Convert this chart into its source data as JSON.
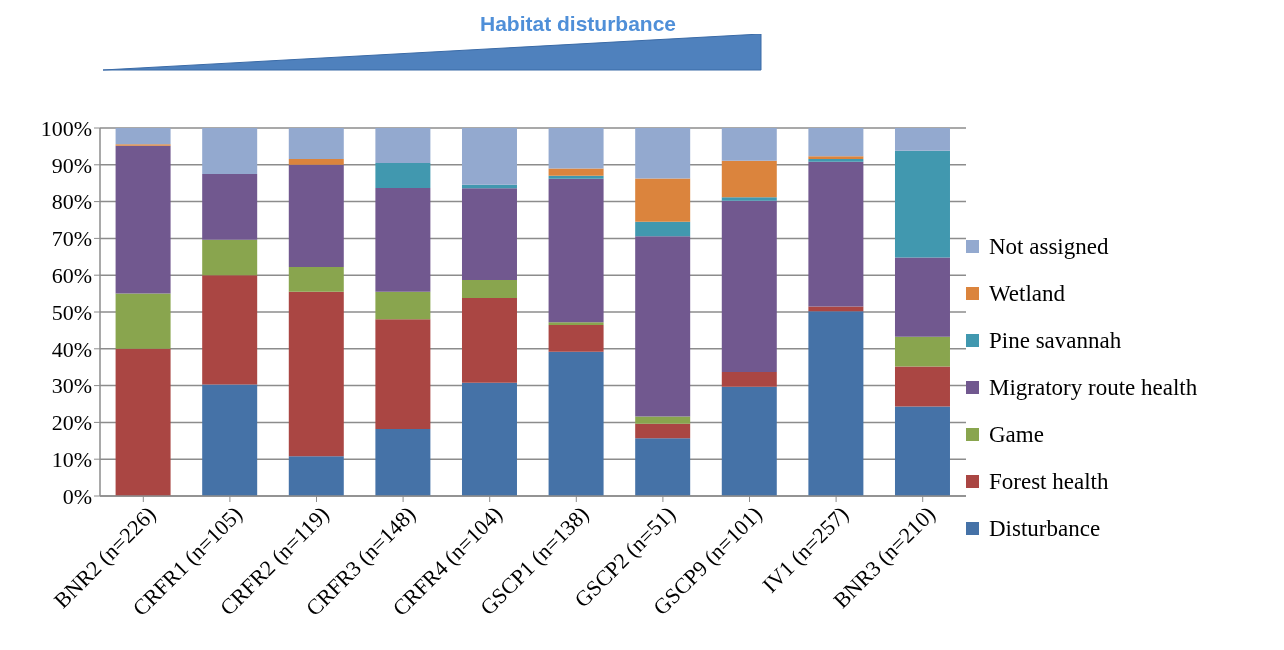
{
  "chart_data": {
    "type": "bar",
    "stacked": true,
    "title": "Habitat disturbance",
    "categories": [
      "BNR2 (n=226)",
      "CRFR1 (n=105)",
      "CRFR2 (n=119)",
      "CRFR3 (n=148)",
      "CRFR4 (n=104)",
      "GSCP1 (n=138)",
      "GSCP2 (n=51)",
      "GSCP9 (n=101)",
      "IV1 (n=257)",
      "BNR3 (n=210)"
    ],
    "series": [
      {
        "name": "Disturbance",
        "color": "#4572a7",
        "values": [
          0,
          30.3,
          10.8,
          18.2,
          30.8,
          39.2,
          15.7,
          29.7,
          50.2,
          24.3
        ]
      },
      {
        "name": "Forest health",
        "color": "#aa4643",
        "values": [
          40,
          29.7,
          44.7,
          29.8,
          23,
          7.3,
          3.9,
          4,
          1.3,
          10.9
        ]
      },
      {
        "name": "Game",
        "color": "#89a54e",
        "values": [
          15,
          9.6,
          6.7,
          7.5,
          4.9,
          0.7,
          2,
          0,
          0,
          8.1
        ]
      },
      {
        "name": "Migratory route health",
        "color": "#71588f",
        "values": [
          40.2,
          17.9,
          27.8,
          28.2,
          24.9,
          39,
          49,
          46.5,
          39.3,
          21.5
        ]
      },
      {
        "name": "Pine savannah",
        "color": "#4198af",
        "values": [
          0,
          0,
          0,
          6.8,
          1,
          0.8,
          3.9,
          1,
          0.8,
          29
        ]
      },
      {
        "name": "Wetland",
        "color": "#db843d",
        "values": [
          0.4,
          0,
          1.6,
          0,
          0,
          2,
          11.8,
          9.9,
          0.7,
          0
        ]
      },
      {
        "name": "Not assigned",
        "color": "#93a9cf",
        "values": [
          4.4,
          12.5,
          8.4,
          9.5,
          15.4,
          11,
          13.7,
          8.9,
          7.7,
          6.2
        ]
      }
    ],
    "ylim": [
      0,
      100
    ],
    "yticks": [
      {
        "value": 0,
        "label": "0%"
      },
      {
        "value": 10,
        "label": "10%"
      },
      {
        "value": 20,
        "label": "20%"
      },
      {
        "value": 30,
        "label": "30%"
      },
      {
        "value": 40,
        "label": "40%"
      },
      {
        "value": 50,
        "label": "50%"
      },
      {
        "value": 60,
        "label": "60%"
      },
      {
        "value": 70,
        "label": "70%"
      },
      {
        "value": 80,
        "label": "80%"
      },
      {
        "value": 90,
        "label": "90%"
      },
      {
        "value": 100,
        "label": "100%"
      }
    ],
    "grid": "y",
    "legend": "right"
  }
}
